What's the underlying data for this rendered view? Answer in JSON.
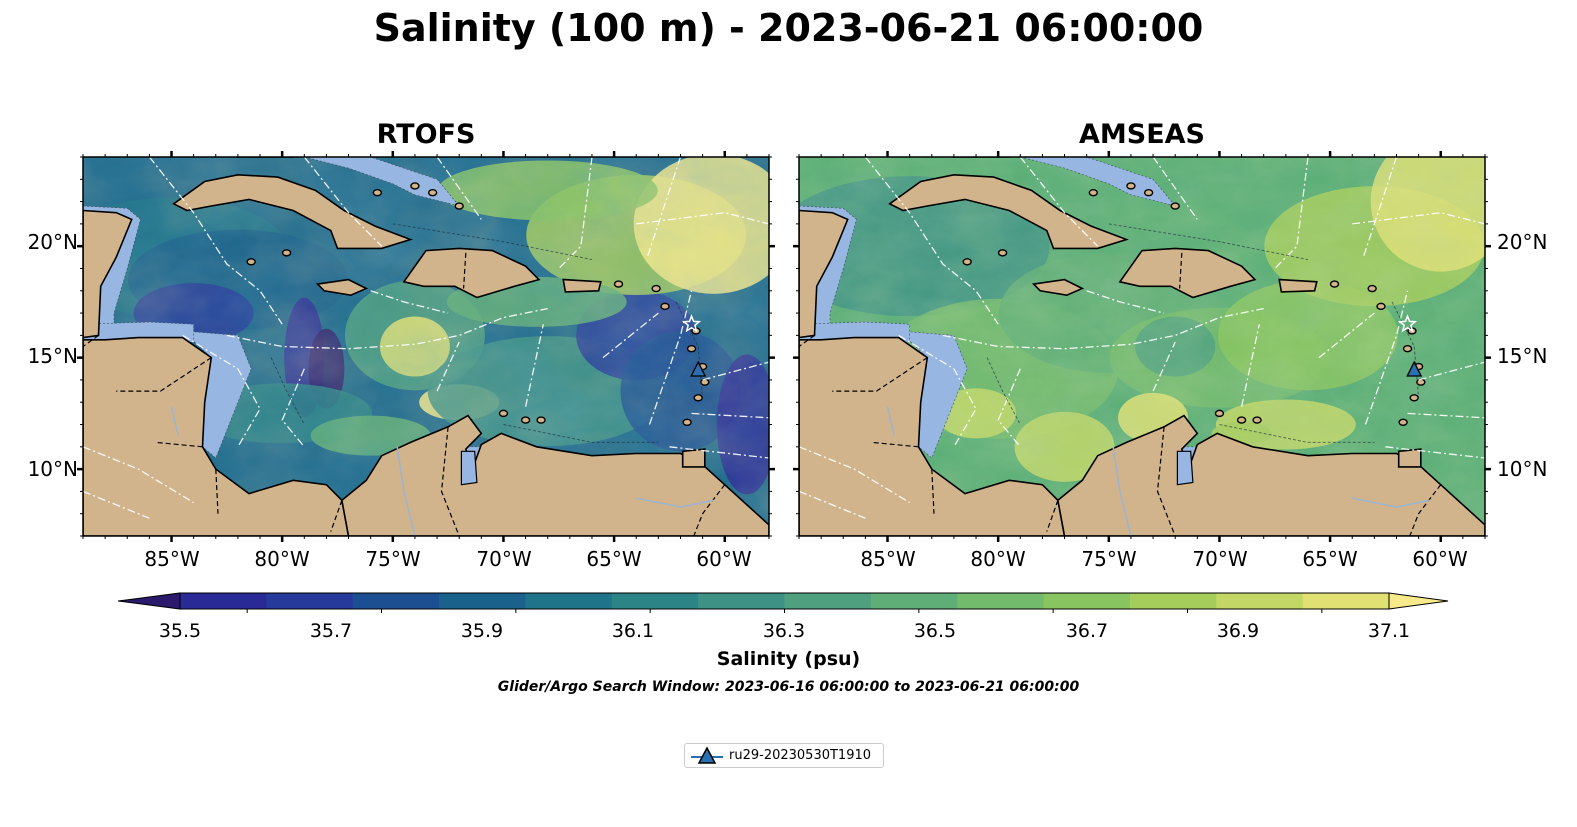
{
  "figure": {
    "title": "Salinity (100 m) - 2023-06-21 06:00:00",
    "search_window": "Glider/Argo Search Window: 2023-06-16 06:00:00 to 2023-06-21 06:00:00"
  },
  "panels": [
    {
      "title": "RTOFS",
      "model": "RTOFS"
    },
    {
      "title": "AMSEAS",
      "model": "AMSEAS"
    }
  ],
  "map_extent": {
    "lon_range": [
      -89,
      -58
    ],
    "lat_range": [
      7,
      24
    ]
  },
  "lon_ticks": [
    "85°W",
    "80°W",
    "75°W",
    "70°W",
    "65°W",
    "60°W"
  ],
  "lat_ticks": [
    "20°N",
    "15°N",
    "10°N"
  ],
  "colorbar": {
    "label": "Salinity (psu)",
    "ticks": [
      "35.5",
      "35.7",
      "35.9",
      "36.1",
      "36.3",
      "36.5",
      "36.7",
      "36.9",
      "37.1"
    ],
    "range": [
      35.4,
      37.2
    ],
    "extend": "both",
    "colors": [
      "#2b1a6b",
      "#2a2a96",
      "#253a9a",
      "#1b4f92",
      "#1a628c",
      "#1f7489",
      "#2c8487",
      "#3d9285",
      "#4fa07f",
      "#5fae77",
      "#72ba6c",
      "#88c460",
      "#a4cd5c",
      "#c2d766",
      "#e0e073",
      "#f6ea8a"
    ]
  },
  "legend": {
    "entries": [
      {
        "label": "ru29-20230530T1910",
        "marker": "triangle",
        "color": "#2a6fb0"
      }
    ]
  },
  "glider": {
    "lon": -61.2,
    "lat": 14.4
  },
  "colors": {
    "land": "#d2b48c",
    "shelf": "#97b6e1",
    "deep_left": "#2b1a6b"
  }
}
